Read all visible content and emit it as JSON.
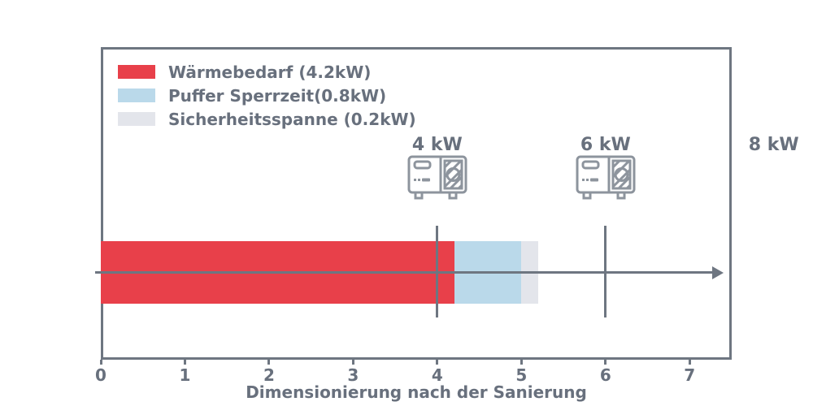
{
  "chart_data": {
    "type": "bar",
    "orientation": "horizontal",
    "title": "",
    "xlabel": "Dimensionierung nach der Sanierung",
    "ylabel": "",
    "xlim": [
      0,
      7.5
    ],
    "xticks": [
      0,
      1,
      2,
      3,
      4,
      5,
      6,
      7
    ],
    "grid": false,
    "legend_position": "upper-left",
    "bar": {
      "segments": [
        {
          "name": "waermebedarf",
          "legend_label": "Wärmebedarf (4.2kW)",
          "value_kw": 4.2,
          "start": 0,
          "end": 4.2,
          "color": "#e8404a"
        },
        {
          "name": "puffer-sperrzeit",
          "legend_label": "Puffer Sperrzeit(0.8kW)",
          "value_kw": 0.8,
          "start": 4.2,
          "end": 5.0,
          "color": "#bad9ea"
        },
        {
          "name": "sicherheitsspanne",
          "legend_label": "Sicherheitsspanne (0.2kW)",
          "value_kw": 0.2,
          "start": 5.0,
          "end": 5.2,
          "color": "#e3e5eb"
        }
      ]
    },
    "heat_pump_markers": [
      {
        "label": "4 kW",
        "value_kw": 4,
        "line": true,
        "icon": "heat-pump-icon"
      },
      {
        "label": "6 kW",
        "value_kw": 6,
        "line": true,
        "icon": "heat-pump-icon"
      },
      {
        "label": "8 kW",
        "value_kw": 8,
        "line": false,
        "icon": null
      }
    ],
    "arrow": {
      "direction": "right",
      "along": "bar-center"
    }
  },
  "colors": {
    "accent_red": "#e8404a",
    "accent_blue": "#bad9ea",
    "accent_gray": "#e3e5eb",
    "frame": "#6e7681",
    "text": "#68707d",
    "icon": "#8d949d",
    "background": "#ffffff"
  }
}
